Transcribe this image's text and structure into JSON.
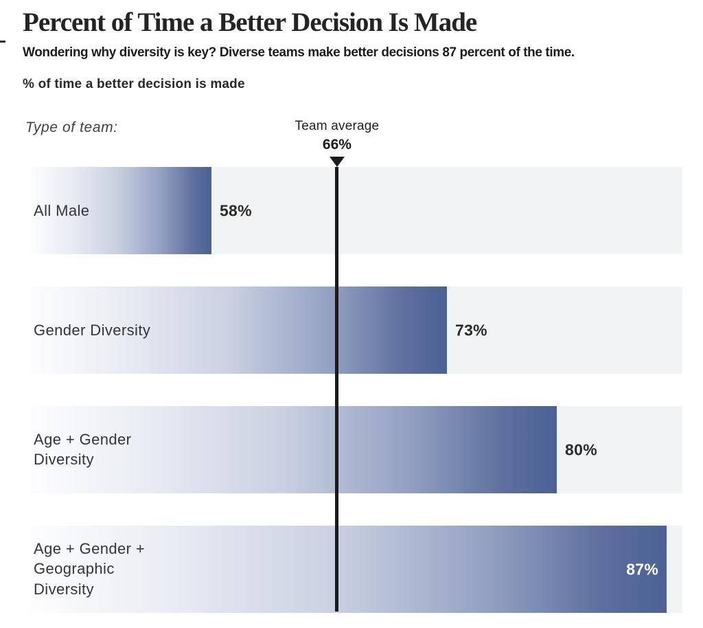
{
  "header": {
    "title": "Percent of Time a Better Decision Is Made",
    "subtitle": "Wondering why diversity is key? Diverse teams make better decisions 87 percent of the time.",
    "axis_label": "% of time a better decision is made"
  },
  "chart_annotations": {
    "type_of_team_label": "Type of team:",
    "team_average_label": "Team average",
    "team_average_value_label": "66%"
  },
  "chart_data": {
    "type": "bar",
    "orientation": "horizontal",
    "title": "Percent of Time a Better Decision Is Made",
    "xlabel": "% of time a better decision is made",
    "categories": [
      "All Male",
      "Gender Diversity",
      "Age + Gender Diversity",
      "Age + Gender + Geographic Diversity"
    ],
    "values": [
      58,
      73,
      80,
      87
    ],
    "value_labels": [
      "58%",
      "73%",
      "80%",
      "87%"
    ],
    "reference_line": {
      "label": "Team average",
      "value": 66,
      "value_label": "66%"
    },
    "axis_range_displayed": [
      46.5,
      88
    ],
    "grid": false,
    "legend": false,
    "display": {
      "bars": [
        {
          "category_display": "All Male",
          "value_label": "58%",
          "value_inside": false
        },
        {
          "category_display": "Gender Diversity",
          "value_label": "73%",
          "value_inside": false
        },
        {
          "category_display": "Age + Gender\nDiversity",
          "value_label": "80%",
          "value_inside": false
        },
        {
          "category_display": "Age + Gender +\nGeographic\nDiversity",
          "value_label": "87%",
          "value_inside": true
        }
      ]
    }
  },
  "colors": {
    "bar_gradient_start": "#fdfdff",
    "bar_gradient_mid": "#c9d0e1",
    "bar_gradient_end": "#4b6195",
    "row_background": "#f2f3f4",
    "reference_line_color": "#1b1b1b",
    "title_color": "#242424",
    "category_label_color": "#34343b",
    "value_label_color": "#2b2b2b",
    "value_label_inside_color": "#ffffff"
  }
}
